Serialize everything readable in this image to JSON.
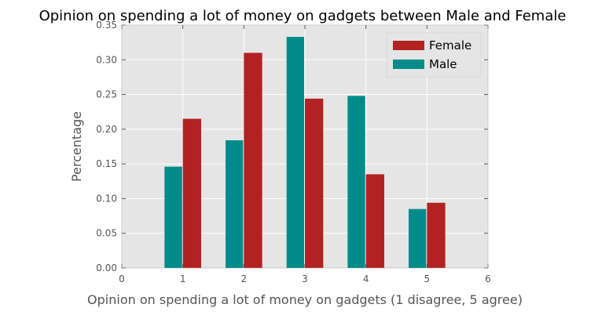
{
  "chart_data": {
    "type": "bar",
    "title": "Opinion on spending a lot of money on gadgets between Male and Female",
    "xlabel": "Opinion on spending a lot of money on gadgets (1 disagree, 5 agree)",
    "ylabel": "Percentage",
    "xlim": [
      0,
      6
    ],
    "ylim": [
      0,
      0.35
    ],
    "x_ticks": [
      "0",
      "1",
      "2",
      "3",
      "4",
      "5",
      "6"
    ],
    "y_ticks": [
      "0.00",
      "0.05",
      "0.10",
      "0.15",
      "0.20",
      "0.25",
      "0.30",
      "0.35"
    ],
    "categories": [
      1,
      2,
      3,
      4,
      5
    ],
    "series": [
      {
        "name": "Female",
        "color": "#b22222",
        "values": [
          0.215,
          0.31,
          0.244,
          0.135,
          0.094
        ]
      },
      {
        "name": "Male",
        "color": "#008b8b",
        "values": [
          0.146,
          0.184,
          0.333,
          0.248,
          0.085
        ]
      }
    ],
    "legend_position": "top-right",
    "grid": true,
    "plot_background": "#e5e5e5"
  }
}
